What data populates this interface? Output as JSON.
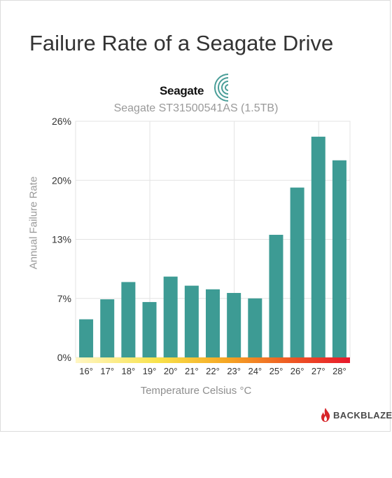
{
  "title": "Failure Rate of a Seagate Drive",
  "brand": "Seagate",
  "footer_brand": "BACKBLAZE",
  "colors": {
    "bar": "#3d9b94",
    "grid": "#e3e3e3",
    "gradient": [
      "#fff6c4",
      "#f8e24a",
      "#f5a623",
      "#ee5a24",
      "#e8192c"
    ]
  },
  "chart_data": {
    "type": "bar",
    "title": "Seagate ST31500541AS (1.5TB)",
    "xlabel": "Temperature Celsius °C",
    "ylabel": "Annual Failure Rate",
    "categories": [
      "16°",
      "17°",
      "18°",
      "19°",
      "20°",
      "21°",
      "22°",
      "23°",
      "24°",
      "25°",
      "26°",
      "27°",
      "28°"
    ],
    "values": [
      4.2,
      6.4,
      8.3,
      6.1,
      8.9,
      7.9,
      7.5,
      7.1,
      6.5,
      13.5,
      18.7,
      24.3,
      21.7
    ],
    "ytick_values": [
      0,
      6.5,
      13,
      19.5,
      26
    ],
    "ytick_labels": [
      "0%",
      "7%",
      "13%",
      "20%",
      "26%"
    ],
    "ylim": [
      0,
      26
    ],
    "grid": true
  }
}
